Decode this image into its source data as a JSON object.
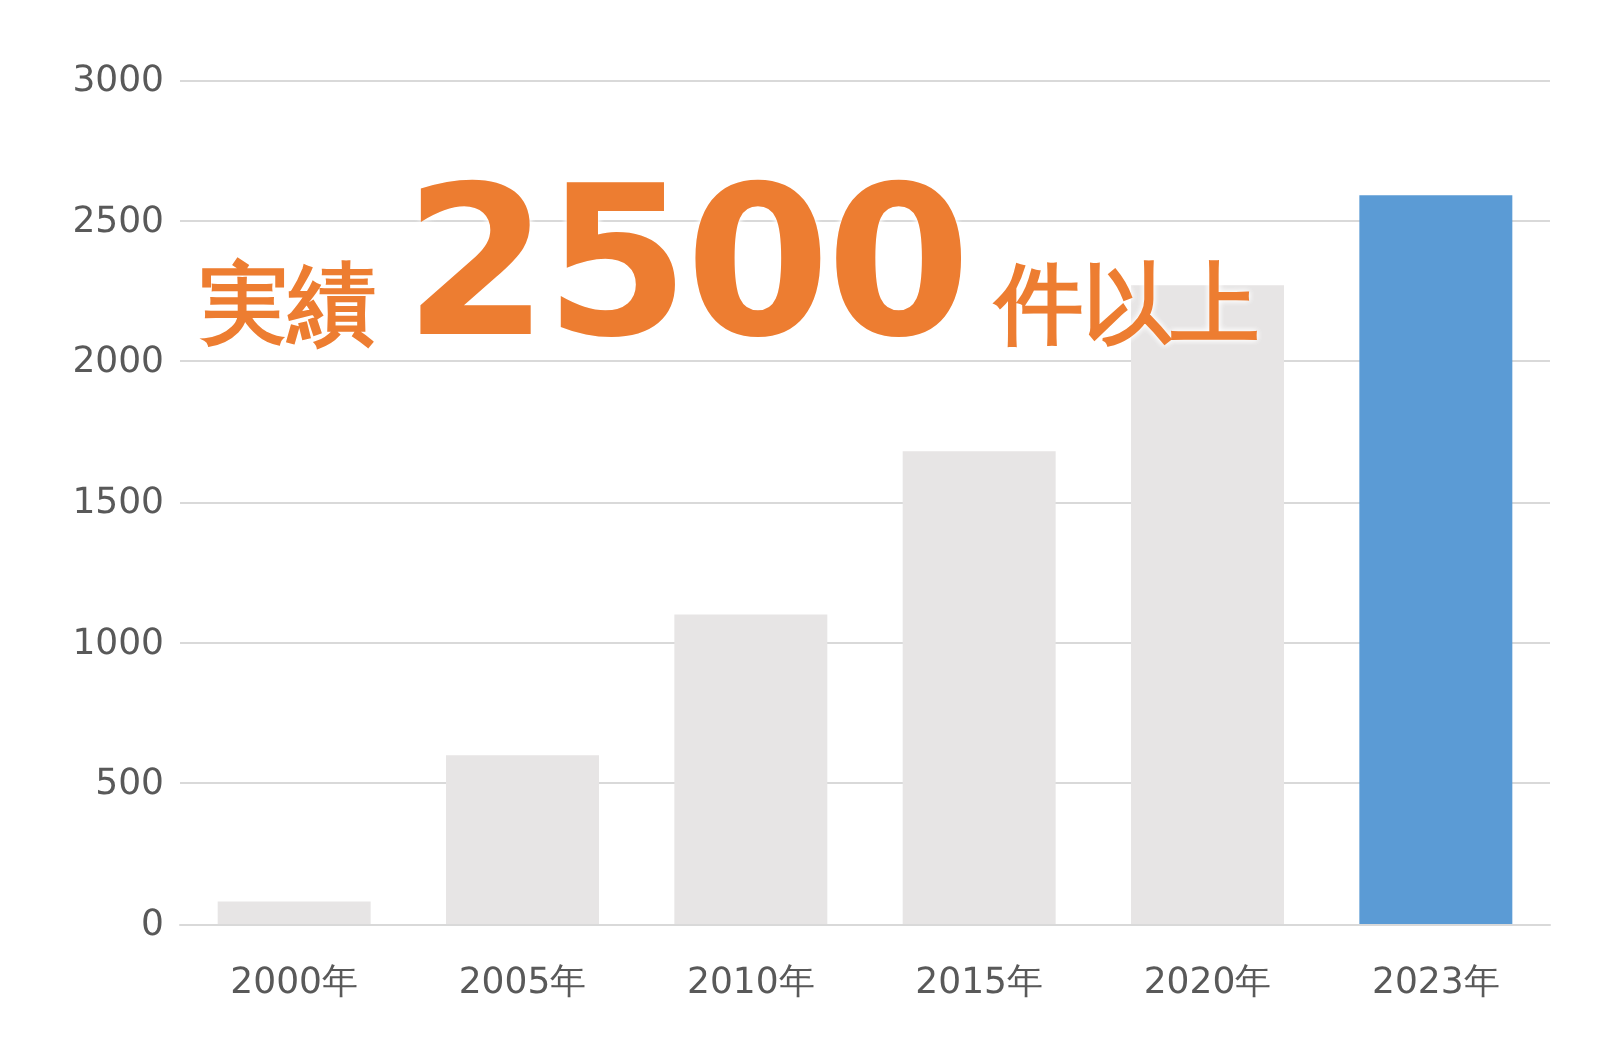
{
  "chart_data": {
    "type": "bar",
    "categories": [
      "2000年",
      "2005年",
      "2010年",
      "2015年",
      "2020年",
      "2023年"
    ],
    "values": [
      80,
      600,
      1100,
      1680,
      2270,
      2590
    ],
    "colors": [
      "#e7e5e5",
      "#e7e5e5",
      "#e7e5e5",
      "#e7e5e5",
      "#e7e5e5",
      "#5b9bd5"
    ],
    "ylim": [
      0,
      3000
    ],
    "yticks": [
      0,
      500,
      1000,
      1500,
      2000,
      2500,
      3000
    ],
    "grid": "y",
    "annotations": [
      "実績2500件以上"
    ]
  }
}
